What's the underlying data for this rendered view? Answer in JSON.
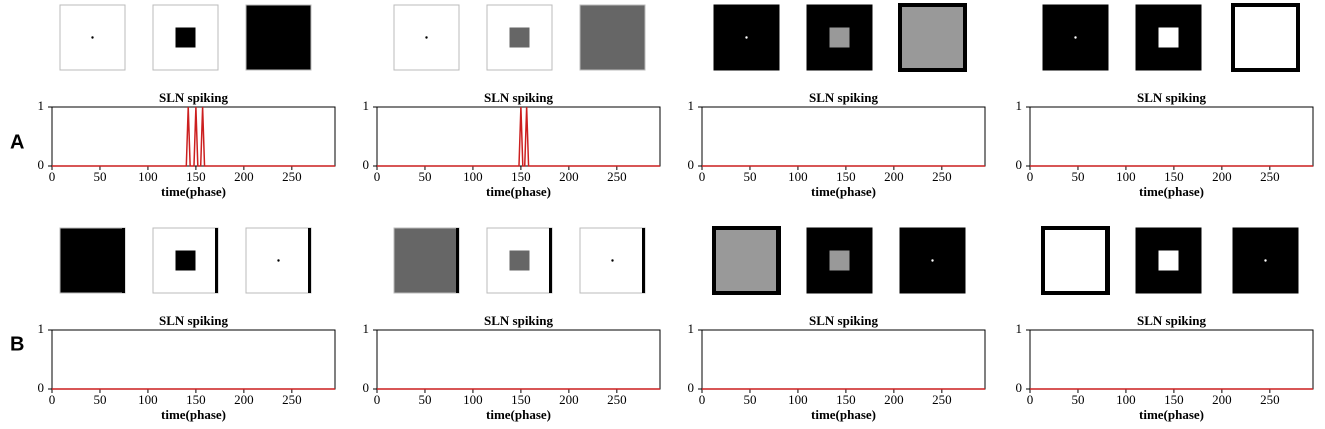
{
  "panel_labels": [
    "A",
    "B"
  ],
  "chart_data": [
    {
      "type": "line",
      "title": "SLN spiking",
      "xlabel": "time(phase)",
      "xlim": [
        0,
        295
      ],
      "ylim": [
        0,
        1
      ],
      "xticks": [
        0,
        50,
        100,
        150,
        200,
        250
      ],
      "yticks": [
        0,
        1
      ],
      "series": [
        {
          "name": "SLN",
          "color": "#cc1f1f",
          "x": [
            0,
            140,
            142,
            144,
            148,
            150,
            152,
            155,
            157,
            159,
            295
          ],
          "values": [
            0,
            0,
            1,
            0,
            0,
            1,
            0,
            0,
            1,
            0,
            0
          ]
        }
      ]
    },
    {
      "type": "line",
      "title": "SLN spiking",
      "xlabel": "time(phase)",
      "xlim": [
        0,
        295
      ],
      "ylim": [
        0,
        1
      ],
      "xticks": [
        0,
        50,
        100,
        150,
        200,
        250
      ],
      "yticks": [
        0,
        1
      ],
      "series": [
        {
          "name": "SLN",
          "color": "#cc1f1f",
          "x": [
            0,
            148,
            150,
            152,
            154,
            156,
            158,
            295
          ],
          "values": [
            0,
            0,
            1,
            0,
            0,
            1,
            0,
            0
          ]
        }
      ]
    },
    {
      "type": "line",
      "title": "SLN spiking",
      "xlabel": "time(phase)",
      "xlim": [
        0,
        295
      ],
      "ylim": [
        0,
        1
      ],
      "xticks": [
        0,
        50,
        100,
        150,
        200,
        250
      ],
      "yticks": [
        0,
        1
      ],
      "series": [
        {
          "name": "SLN",
          "color": "#cc1f1f",
          "x": [
            0,
            295
          ],
          "values": [
            0,
            0
          ]
        }
      ]
    },
    {
      "type": "line",
      "title": "SLN spiking",
      "xlabel": "time(phase)",
      "xlim": [
        0,
        295
      ],
      "ylim": [
        0,
        1
      ],
      "xticks": [
        0,
        50,
        100,
        150,
        200,
        250
      ],
      "yticks": [
        0,
        1
      ],
      "series": [
        {
          "name": "SLN",
          "color": "#cc1f1f",
          "x": [
            0,
            295
          ],
          "values": [
            0,
            0
          ]
        }
      ]
    },
    {
      "type": "line",
      "title": "SLN spiking",
      "xlabel": "time(phase)",
      "xlim": [
        0,
        295
      ],
      "ylim": [
        0,
        1
      ],
      "xticks": [
        0,
        50,
        100,
        150,
        200,
        250
      ],
      "yticks": [
        0,
        1
      ],
      "series": [
        {
          "name": "SLN",
          "color": "#cc1f1f",
          "x": [
            0,
            295
          ],
          "values": [
            0,
            0
          ]
        }
      ]
    },
    {
      "type": "line",
      "title": "SLN spiking",
      "xlabel": "time(phase)",
      "xlim": [
        0,
        295
      ],
      "ylim": [
        0,
        1
      ],
      "xticks": [
        0,
        50,
        100,
        150,
        200,
        250
      ],
      "yticks": [
        0,
        1
      ],
      "series": [
        {
          "name": "SLN",
          "color": "#cc1f1f",
          "x": [
            0,
            295
          ],
          "values": [
            0,
            0
          ]
        }
      ]
    },
    {
      "type": "line",
      "title": "SLN spiking",
      "xlabel": "time(phase)",
      "xlim": [
        0,
        295
      ],
      "ylim": [
        0,
        1
      ],
      "xticks": [
        0,
        50,
        100,
        150,
        200,
        250
      ],
      "yticks": [
        0,
        1
      ],
      "series": [
        {
          "name": "SLN",
          "color": "#cc1f1f",
          "x": [
            0,
            295
          ],
          "values": [
            0,
            0
          ]
        }
      ]
    },
    {
      "type": "line",
      "title": "SLN spiking",
      "xlabel": "time(phase)",
      "xlim": [
        0,
        295
      ],
      "ylim": [
        0,
        1
      ],
      "xticks": [
        0,
        50,
        100,
        150,
        200,
        250
      ],
      "yticks": [
        0,
        1
      ],
      "series": [
        {
          "name": "SLN",
          "color": "#cc1f1f",
          "x": [
            0,
            295
          ],
          "values": [
            0,
            0
          ]
        }
      ]
    }
  ]
}
